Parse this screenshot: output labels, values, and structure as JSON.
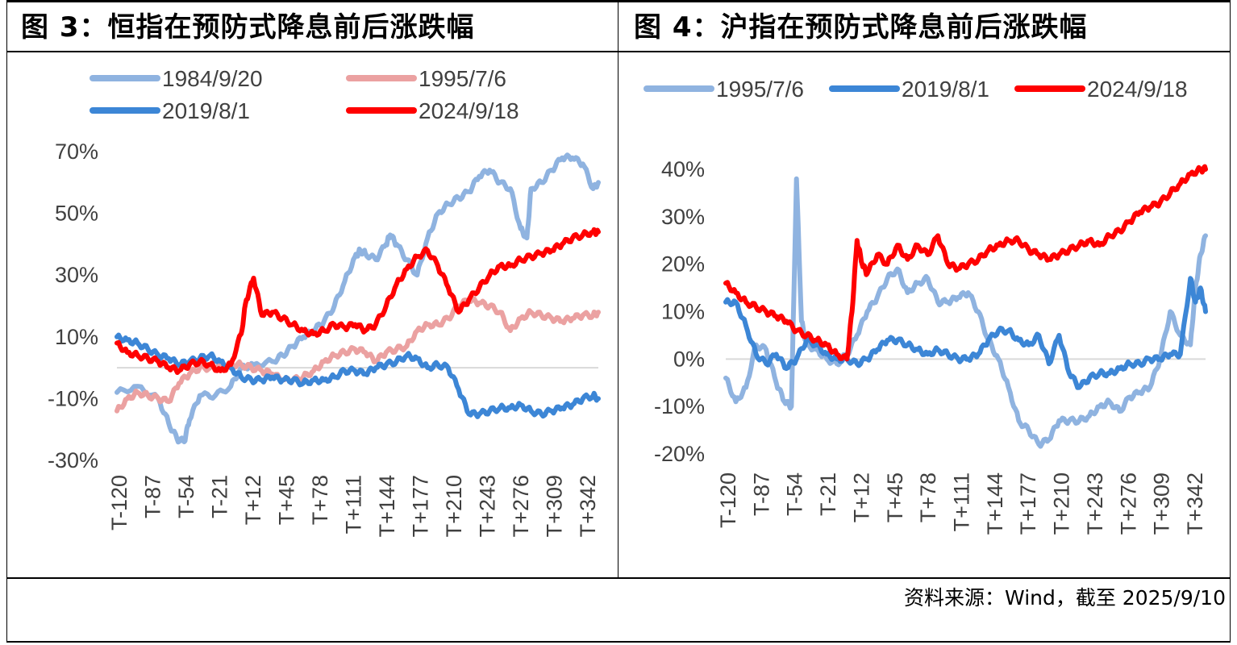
{
  "panels": [
    {
      "title": "图 3：恒指在预防式降息前后涨跌幅"
    },
    {
      "title": "图 4：沪指在预防式降息前后涨跌幅"
    }
  ],
  "source": "资料来源：Wind，截至 2025/9/10",
  "chart_data": [
    {
      "type": "line",
      "title": "",
      "ylim": [
        -0.3,
        0.7
      ],
      "yticks": [
        0.7,
        0.5,
        0.3,
        0.1,
        -0.1,
        -0.3
      ],
      "ytick_labels": [
        "70%",
        "50%",
        "30%",
        "10%",
        "-10%",
        "-30%"
      ],
      "xticks": [
        "T-120",
        "T-87",
        "T-54",
        "T-21",
        "T+12",
        "T+45",
        "T+78",
        "T+111",
        "T+144",
        "T+177",
        "T+210",
        "T+243",
        "T+276",
        "T+309",
        "T+342"
      ],
      "x_range": [
        -120,
        345
      ],
      "zero_line": true,
      "legend_position": "top",
      "series": [
        {
          "name": "1984/9/20",
          "color": "#8fb3e0",
          "x": [
            -120,
            -100,
            -80,
            -70,
            -62,
            -55,
            -50,
            -40,
            -25,
            -10,
            0,
            12,
            30,
            40,
            50,
            60,
            70,
            80,
            90,
            100,
            110,
            115,
            120,
            130,
            140,
            144,
            150,
            160,
            170,
            180,
            190,
            200,
            210,
            220,
            230,
            240,
            250,
            260,
            270,
            276,
            280,
            290,
            300,
            310,
            320,
            330,
            340,
            345
          ],
          "y": [
            -0.08,
            -0.06,
            -0.1,
            -0.18,
            -0.23,
            -0.24,
            -0.17,
            -0.09,
            -0.09,
            -0.06,
            0.0,
            0.01,
            0.02,
            0.04,
            0.07,
            0.1,
            0.12,
            0.15,
            0.2,
            0.28,
            0.36,
            0.38,
            0.37,
            0.35,
            0.4,
            0.43,
            0.4,
            0.35,
            0.3,
            0.42,
            0.5,
            0.53,
            0.55,
            0.57,
            0.62,
            0.64,
            0.6,
            0.58,
            0.45,
            0.42,
            0.58,
            0.6,
            0.64,
            0.68,
            0.68,
            0.66,
            0.58,
            0.6
          ]
        },
        {
          "name": "1995/7/6",
          "color": "#eba1a1",
          "x": [
            -120,
            -110,
            -100,
            -90,
            -80,
            -70,
            -60,
            -50,
            -40,
            -30,
            -20,
            -10,
            0,
            10,
            20,
            30,
            40,
            50,
            60,
            70,
            80,
            90,
            100,
            110,
            120,
            130,
            140,
            150,
            160,
            170,
            180,
            190,
            200,
            210,
            220,
            230,
            240,
            250,
            260,
            270,
            280,
            290,
            300,
            310,
            320,
            330,
            340,
            345
          ],
          "y": [
            -0.14,
            -0.1,
            -0.08,
            -0.09,
            -0.1,
            -0.11,
            -0.05,
            -0.02,
            0.0,
            0.0,
            0.01,
            0.01,
            0.01,
            0.0,
            -0.01,
            -0.02,
            -0.04,
            -0.04,
            -0.03,
            -0.01,
            0.02,
            0.04,
            0.05,
            0.06,
            0.05,
            0.02,
            0.05,
            0.06,
            0.07,
            0.12,
            0.14,
            0.14,
            0.16,
            0.2,
            0.22,
            0.21,
            0.2,
            0.18,
            0.12,
            0.16,
            0.18,
            0.17,
            0.16,
            0.15,
            0.16,
            0.17,
            0.17,
            0.18
          ]
        },
        {
          "name": "2019/8/1",
          "color": "#3c86d6",
          "x": [
            -120,
            -110,
            -100,
            -90,
            -80,
            -70,
            -60,
            -50,
            -40,
            -30,
            -20,
            -10,
            0,
            10,
            20,
            30,
            40,
            50,
            60,
            70,
            80,
            90,
            100,
            110,
            120,
            130,
            140,
            150,
            160,
            170,
            180,
            190,
            200,
            210,
            220,
            230,
            240,
            250,
            260,
            270,
            280,
            290,
            300,
            310,
            320,
            330,
            340,
            345
          ],
          "y": [
            0.1,
            0.09,
            0.08,
            0.06,
            0.04,
            0.03,
            0.01,
            0.02,
            0.03,
            0.04,
            0.02,
            0.0,
            -0.03,
            -0.04,
            -0.04,
            -0.03,
            -0.04,
            -0.04,
            -0.05,
            -0.04,
            -0.04,
            -0.03,
            -0.01,
            -0.01,
            -0.02,
            0.0,
            0.01,
            0.02,
            0.04,
            0.03,
            0.0,
            0.01,
            0.0,
            -0.07,
            -0.15,
            -0.15,
            -0.14,
            -0.13,
            -0.13,
            -0.12,
            -0.14,
            -0.15,
            -0.14,
            -0.13,
            -0.12,
            -0.1,
            -0.09,
            -0.1
          ]
        },
        {
          "name": "2024/9/18",
          "color": "#ff0000",
          "x": [
            -120,
            -110,
            -100,
            -90,
            -80,
            -70,
            -60,
            -50,
            -40,
            -30,
            -20,
            -10,
            0,
            5,
            12,
            20,
            30,
            40,
            50,
            60,
            70,
            80,
            90,
            100,
            110,
            120,
            130,
            140,
            150,
            160,
            170,
            180,
            190,
            200,
            210,
            220,
            230,
            240,
            250,
            260,
            270,
            280,
            290,
            300,
            310,
            320,
            330,
            340,
            345
          ],
          "y": [
            0.08,
            0.05,
            0.04,
            0.03,
            0.02,
            0.0,
            -0.01,
            0.01,
            0.02,
            0.01,
            -0.01,
            0.01,
            0.11,
            0.22,
            0.29,
            0.17,
            0.18,
            0.16,
            0.14,
            0.12,
            0.11,
            0.12,
            0.14,
            0.13,
            0.14,
            0.12,
            0.14,
            0.2,
            0.27,
            0.32,
            0.36,
            0.38,
            0.33,
            0.26,
            0.18,
            0.22,
            0.26,
            0.3,
            0.33,
            0.33,
            0.35,
            0.36,
            0.37,
            0.38,
            0.4,
            0.42,
            0.43,
            0.44,
            0.44
          ]
        }
      ]
    },
    {
      "type": "line",
      "title": "",
      "ylim": [
        -0.2,
        0.4
      ],
      "yticks": [
        0.4,
        0.3,
        0.2,
        0.1,
        0.0,
        -0.1,
        -0.2
      ],
      "ytick_labels": [
        "40%",
        "30%",
        "20%",
        "10%",
        "0%",
        "-10%",
        "-20%"
      ],
      "xticks": [
        "T-120",
        "T-87",
        "T-54",
        "T-21",
        "T+12",
        "T+45",
        "T+78",
        "T+111",
        "T+144",
        "T+177",
        "T+210",
        "T+243",
        "T+276",
        "T+309",
        "T+342"
      ],
      "x_range": [
        -120,
        355
      ],
      "zero_line": true,
      "legend_position": "top",
      "series": [
        {
          "name": "1995/7/6",
          "color": "#8fb3e0",
          "x": [
            -120,
            -110,
            -100,
            -90,
            -80,
            -70,
            -62,
            -55,
            -50,
            -45,
            -40,
            -30,
            -20,
            -10,
            0,
            10,
            20,
            30,
            40,
            50,
            60,
            70,
            80,
            90,
            100,
            110,
            120,
            130,
            140,
            150,
            160,
            170,
            180,
            190,
            200,
            210,
            220,
            230,
            240,
            250,
            260,
            270,
            280,
            290,
            300,
            310,
            320,
            330,
            340,
            345,
            350,
            355
          ],
          "y": [
            -0.04,
            -0.09,
            -0.06,
            0.03,
            0.02,
            -0.05,
            -0.09,
            -0.1,
            0.38,
            0.08,
            0.03,
            0.02,
            0.0,
            -0.01,
            0.01,
            0.05,
            0.1,
            0.13,
            0.17,
            0.19,
            0.14,
            0.16,
            0.17,
            0.12,
            0.12,
            0.13,
            0.14,
            0.1,
            0.04,
            0.0,
            -0.06,
            -0.13,
            -0.15,
            -0.18,
            -0.17,
            -0.13,
            -0.13,
            -0.13,
            -0.12,
            -0.1,
            -0.09,
            -0.11,
            -0.08,
            -0.07,
            -0.06,
            0.0,
            0.1,
            0.05,
            0.03,
            0.15,
            0.22,
            0.26
          ]
        },
        {
          "name": "2019/8/1",
          "color": "#3c86d6",
          "x": [
            -120,
            -110,
            -100,
            -90,
            -80,
            -70,
            -60,
            -50,
            -40,
            -30,
            -20,
            -10,
            0,
            10,
            20,
            30,
            40,
            50,
            60,
            70,
            80,
            90,
            100,
            110,
            120,
            130,
            140,
            150,
            160,
            170,
            180,
            190,
            200,
            210,
            220,
            230,
            240,
            250,
            260,
            270,
            280,
            290,
            300,
            310,
            320,
            330,
            340,
            345,
            350,
            355
          ],
          "y": [
            0.12,
            0.12,
            0.07,
            0.01,
            -0.01,
            0.01,
            -0.02,
            0.0,
            0.04,
            0.03,
            0.01,
            0.0,
            0.0,
            -0.01,
            0.0,
            0.02,
            0.04,
            0.04,
            0.03,
            0.02,
            0.01,
            0.02,
            0.01,
            0.0,
            0.0,
            0.01,
            0.04,
            0.06,
            0.06,
            0.04,
            0.03,
            0.05,
            -0.01,
            0.05,
            -0.03,
            -0.06,
            -0.04,
            -0.03,
            -0.03,
            -0.02,
            -0.01,
            -0.01,
            0.0,
            0.0,
            0.01,
            0.01,
            0.17,
            0.12,
            0.15,
            0.1
          ]
        },
        {
          "name": "2024/9/18",
          "color": "#ff0000",
          "x": [
            -120,
            -110,
            -100,
            -90,
            -80,
            -70,
            -60,
            -50,
            -40,
            -30,
            -20,
            -10,
            0,
            5,
            10,
            15,
            20,
            30,
            40,
            50,
            60,
            70,
            80,
            90,
            100,
            110,
            120,
            130,
            140,
            150,
            160,
            170,
            180,
            190,
            200,
            210,
            220,
            230,
            240,
            250,
            260,
            270,
            280,
            290,
            300,
            310,
            320,
            330,
            340,
            350,
            355
          ],
          "y": [
            0.16,
            0.14,
            0.12,
            0.11,
            0.1,
            0.09,
            0.08,
            0.06,
            0.05,
            0.04,
            0.03,
            0.01,
            0.0,
            0.1,
            0.25,
            0.2,
            0.18,
            0.22,
            0.2,
            0.24,
            0.21,
            0.24,
            0.22,
            0.26,
            0.2,
            0.19,
            0.2,
            0.21,
            0.23,
            0.24,
            0.25,
            0.25,
            0.23,
            0.22,
            0.21,
            0.22,
            0.23,
            0.24,
            0.25,
            0.24,
            0.26,
            0.27,
            0.29,
            0.31,
            0.32,
            0.33,
            0.35,
            0.37,
            0.39,
            0.4,
            0.4
          ]
        }
      ]
    }
  ]
}
